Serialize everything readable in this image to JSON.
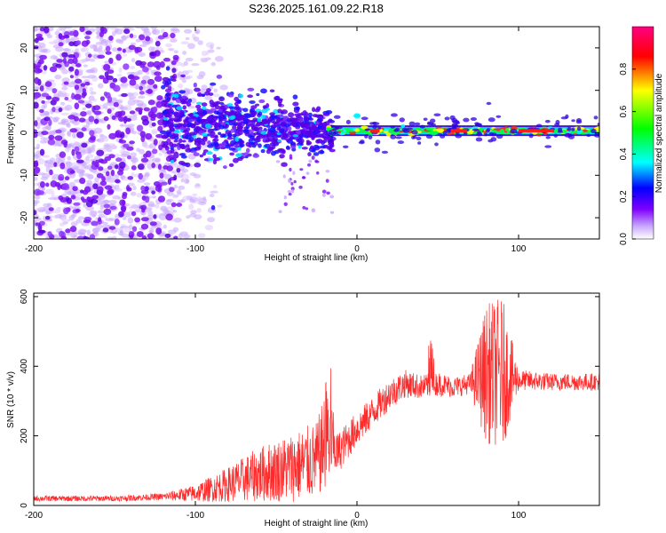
{
  "title": "S236.2025.161.09.22.R18",
  "chart_data": [
    {
      "type": "heatmap",
      "xlabel": "Height of straight line (km)",
      "ylabel": "Frequency (Hz)",
      "xlim": [
        -200,
        150
      ],
      "ylim": [
        -25,
        25
      ],
      "x_ticks": [
        -200,
        -100,
        0,
        100
      ],
      "y_ticks": [
        -20,
        -10,
        0,
        10,
        20
      ],
      "colorbar": {
        "label": "Normalized spectral amplitude",
        "range": [
          0,
          1
        ],
        "ticks": [
          "0.0",
          "0.2",
          "0.4",
          "0.6",
          "0.8"
        ],
        "colormap": [
          "#ffffff",
          "#7f00ff",
          "#0000ff",
          "#00ffff",
          "#00ff00",
          "#ffff00",
          "#ff0000",
          "#ff00aa"
        ]
      },
      "features": {
        "scatter_region_x": [
          -200,
          -110
        ],
        "scatter_freq_spread": [
          -25,
          25
        ],
        "taper_region_x": [
          -120,
          -15
        ],
        "taper_freq_center": 3,
        "line_region_x": [
          -18,
          150
        ],
        "line_freq": 0.5
      }
    },
    {
      "type": "line",
      "xlabel": "Height of straight line (km)",
      "ylabel": "SNR (10 * v/v)",
      "xlim": [
        -200,
        150
      ],
      "ylim": [
        0,
        610
      ],
      "x_ticks": [
        -200,
        -100,
        0,
        100
      ],
      "y_ticks": [
        0,
        200,
        400,
        600
      ],
      "color": "#ff2a2a",
      "envelope": {
        "x": [
          -200,
          -150,
          -120,
          -100,
          -80,
          -60,
          -40,
          -25,
          -18,
          -12,
          0,
          10,
          20,
          30,
          40,
          50,
          60,
          70,
          80,
          90,
          100,
          120,
          150
        ],
        "mean": [
          20,
          20,
          25,
          35,
          60,
          90,
          110,
          130,
          200,
          150,
          220,
          270,
          320,
          350,
          340,
          350,
          340,
          350,
          380,
          380,
          360,
          355,
          355
        ],
        "noise": [
          8,
          8,
          10,
          25,
          50,
          80,
          100,
          110,
          150,
          60,
          50,
          45,
          45,
          40,
          35,
          35,
          30,
          30,
          200,
          220,
          30,
          25,
          25
        ]
      }
    }
  ]
}
